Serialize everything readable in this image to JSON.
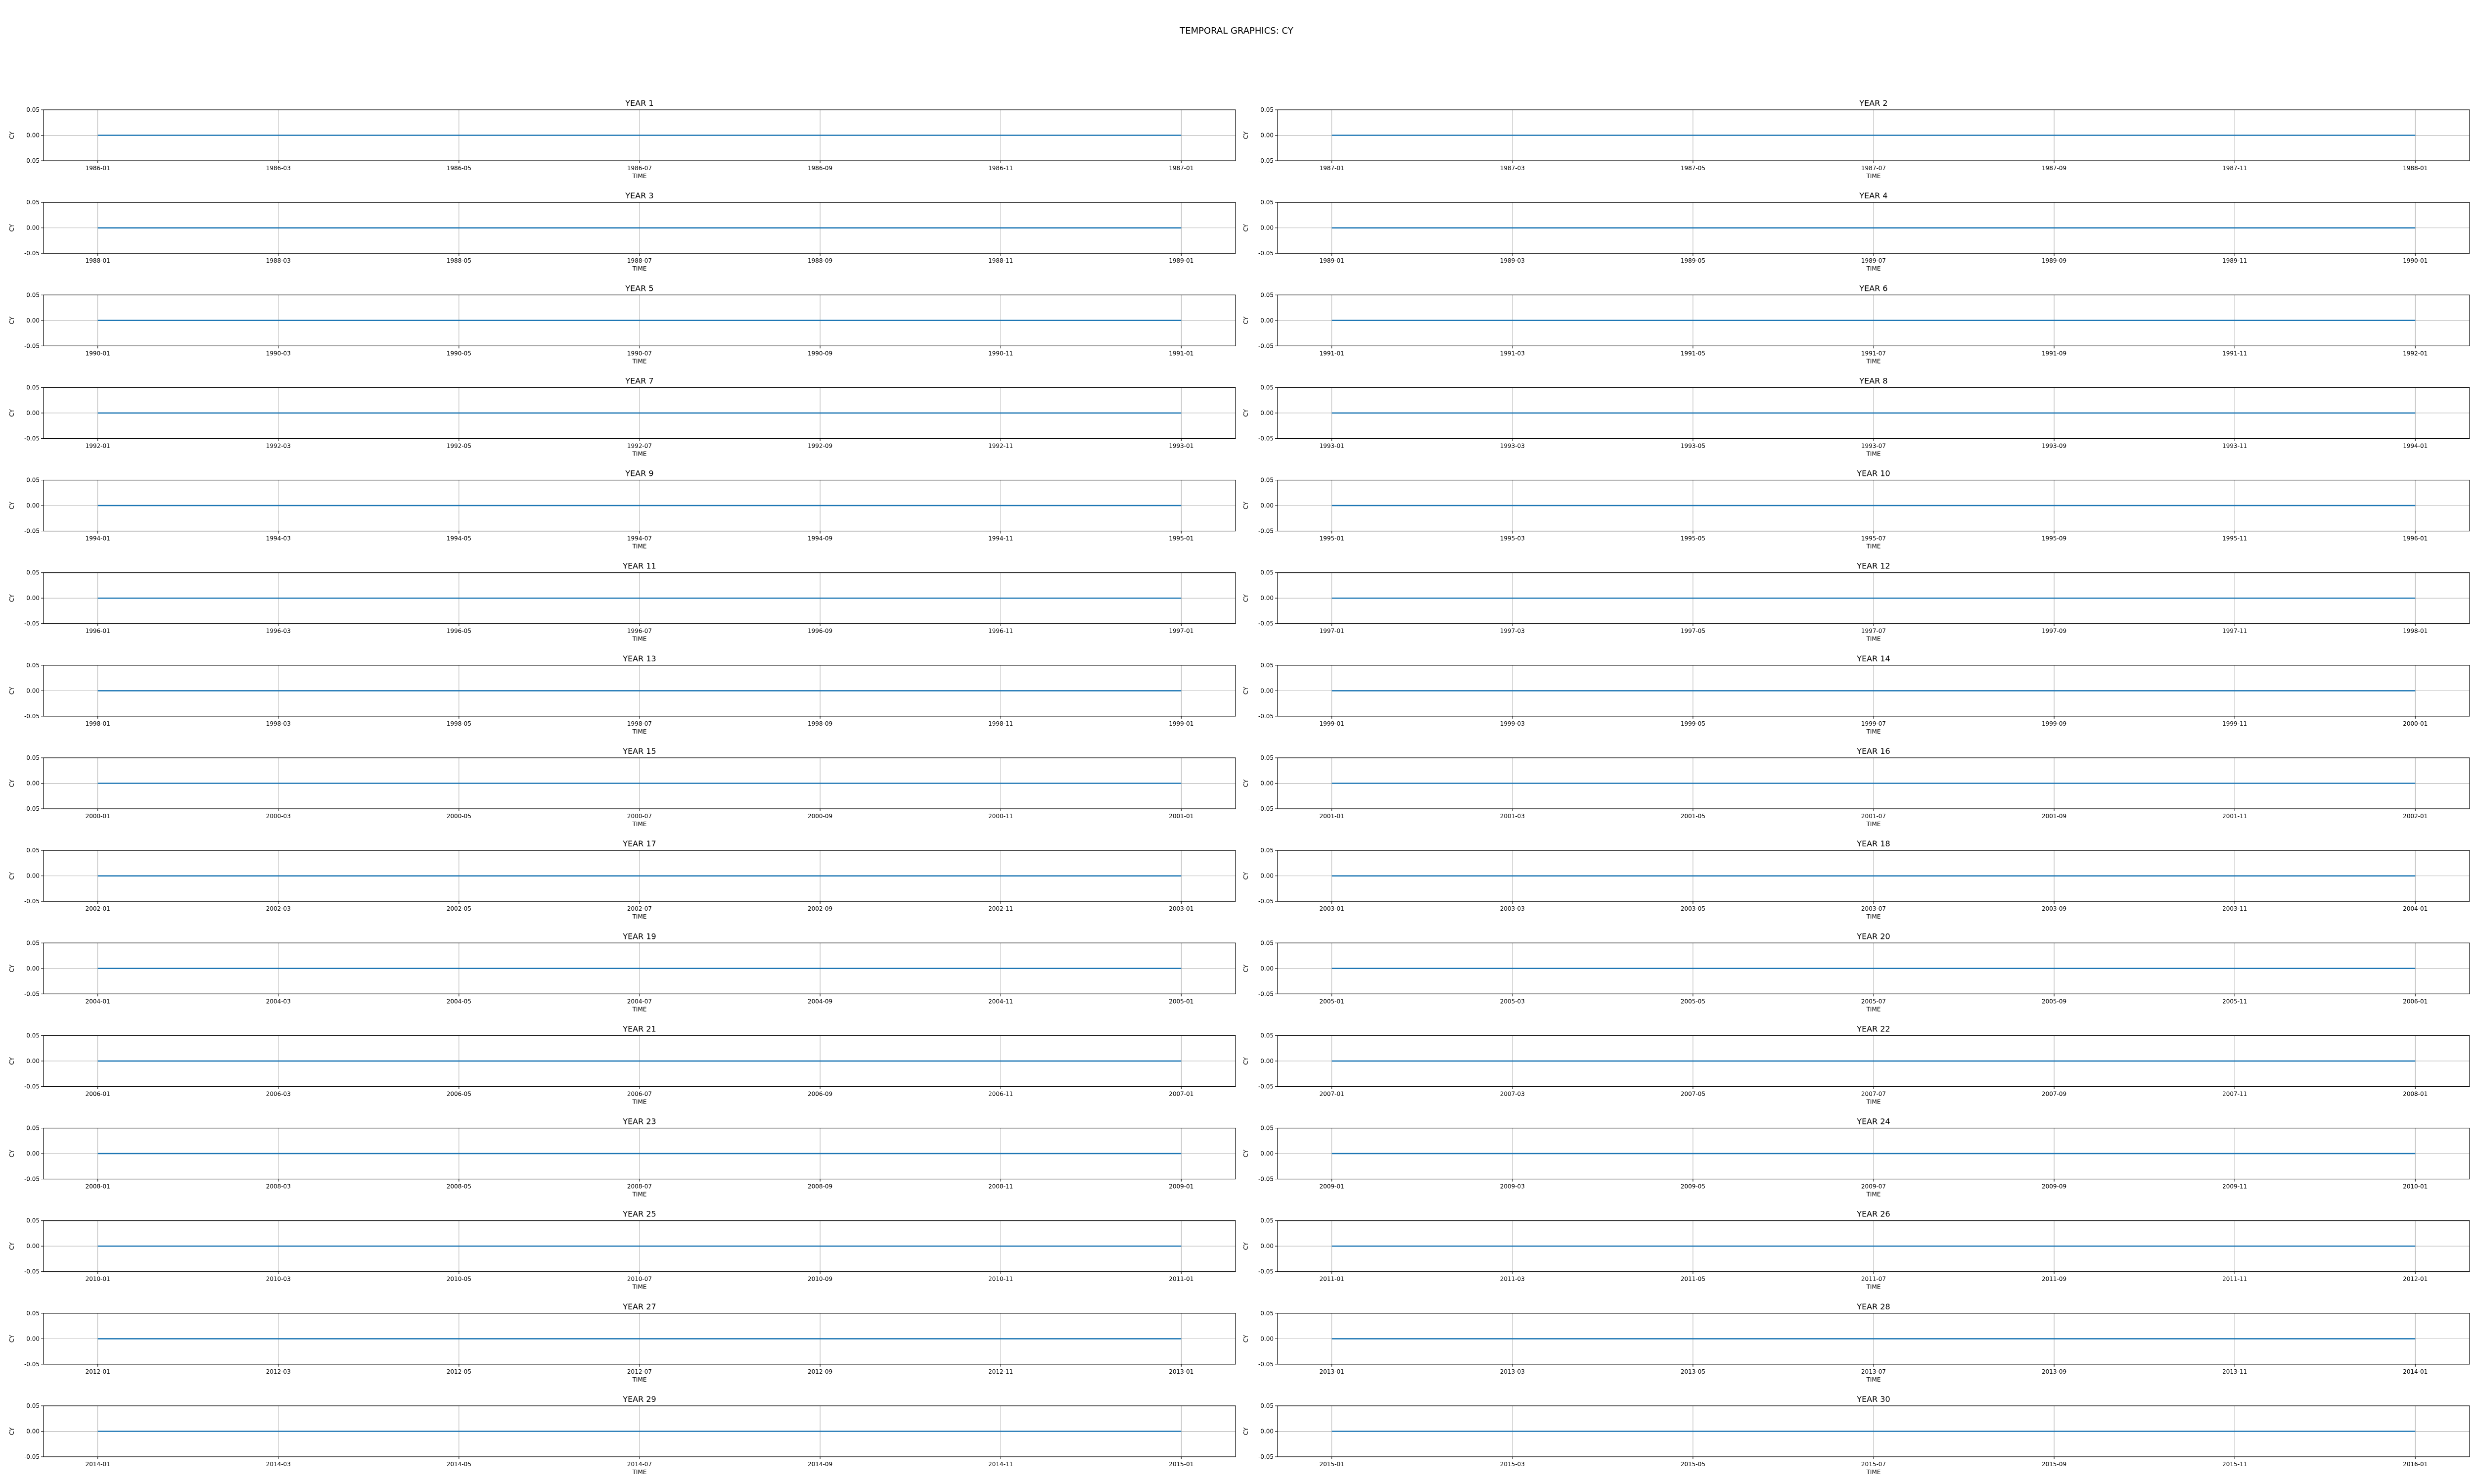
{
  "figure": {
    "title": "TEMPORAL GRAPHICS: CY"
  },
  "colors": {
    "line": "#1f77b4",
    "grid": "#b0b0b0",
    "axes": "#000000"
  },
  "chart_data": {
    "type": "line",
    "layout": "15x2 grid of subplots",
    "grid": true,
    "xlabel": "TIME",
    "ylabel": "CY",
    "ylim": [
      -0.05,
      0.05
    ],
    "yticks": [
      "0.05",
      "0.00",
      "-0.05"
    ],
    "series_rule": "constant value 0 from the first date of each panel to the first date of the following year",
    "value": 0,
    "panels": [
      {
        "title": "YEAR 1",
        "start": "1986-01",
        "end": "1987-01",
        "xticks": [
          "1986-01",
          "1986-03",
          "1986-05",
          "1986-07",
          "1986-09",
          "1986-11",
          "1987-01"
        ]
      },
      {
        "title": "YEAR 2",
        "start": "1987-01",
        "end": "1988-01",
        "xticks": [
          "1987-01",
          "1987-03",
          "1987-05",
          "1987-07",
          "1987-09",
          "1987-11",
          "1988-01"
        ]
      },
      {
        "title": "YEAR 3",
        "start": "1988-01",
        "end": "1989-01",
        "xticks": [
          "1988-01",
          "1988-03",
          "1988-05",
          "1988-07",
          "1988-09",
          "1988-11",
          "1989-01"
        ]
      },
      {
        "title": "YEAR 4",
        "start": "1989-01",
        "end": "1990-01",
        "xticks": [
          "1989-01",
          "1989-03",
          "1989-05",
          "1989-07",
          "1989-09",
          "1989-11",
          "1990-01"
        ]
      },
      {
        "title": "YEAR 5",
        "start": "1990-01",
        "end": "1991-01",
        "xticks": [
          "1990-01",
          "1990-03",
          "1990-05",
          "1990-07",
          "1990-09",
          "1990-11",
          "1991-01"
        ]
      },
      {
        "title": "YEAR 6",
        "start": "1991-01",
        "end": "1992-01",
        "xticks": [
          "1991-01",
          "1991-03",
          "1991-05",
          "1991-07",
          "1991-09",
          "1991-11",
          "1992-01"
        ]
      },
      {
        "title": "YEAR 7",
        "start": "1992-01",
        "end": "1993-01",
        "xticks": [
          "1992-01",
          "1992-03",
          "1992-05",
          "1992-07",
          "1992-09",
          "1992-11",
          "1993-01"
        ]
      },
      {
        "title": "YEAR 8",
        "start": "1993-01",
        "end": "1994-01",
        "xticks": [
          "1993-01",
          "1993-03",
          "1993-05",
          "1993-07",
          "1993-09",
          "1993-11",
          "1994-01"
        ]
      },
      {
        "title": "YEAR 9",
        "start": "1994-01",
        "end": "1995-01",
        "xticks": [
          "1994-01",
          "1994-03",
          "1994-05",
          "1994-07",
          "1994-09",
          "1994-11",
          "1995-01"
        ]
      },
      {
        "title": "YEAR 10",
        "start": "1995-01",
        "end": "1996-01",
        "xticks": [
          "1995-01",
          "1995-03",
          "1995-05",
          "1995-07",
          "1995-09",
          "1995-11",
          "1996-01"
        ]
      },
      {
        "title": "YEAR 11",
        "start": "1996-01",
        "end": "1997-01",
        "xticks": [
          "1996-01",
          "1996-03",
          "1996-05",
          "1996-07",
          "1996-09",
          "1996-11",
          "1997-01"
        ]
      },
      {
        "title": "YEAR 12",
        "start": "1997-01",
        "end": "1998-01",
        "xticks": [
          "1997-01",
          "1997-03",
          "1997-05",
          "1997-07",
          "1997-09",
          "1997-11",
          "1998-01"
        ]
      },
      {
        "title": "YEAR 13",
        "start": "1998-01",
        "end": "1999-01",
        "xticks": [
          "1998-01",
          "1998-03",
          "1998-05",
          "1998-07",
          "1998-09",
          "1998-11",
          "1999-01"
        ]
      },
      {
        "title": "YEAR 14",
        "start": "1999-01",
        "end": "2000-01",
        "xticks": [
          "1999-01",
          "1999-03",
          "1999-05",
          "1999-07",
          "1999-09",
          "1999-11",
          "2000-01"
        ]
      },
      {
        "title": "YEAR 15",
        "start": "2000-01",
        "end": "2001-01",
        "xticks": [
          "2000-01",
          "2000-03",
          "2000-05",
          "2000-07",
          "2000-09",
          "2000-11",
          "2001-01"
        ]
      },
      {
        "title": "YEAR 16",
        "start": "2001-01",
        "end": "2002-01",
        "xticks": [
          "2001-01",
          "2001-03",
          "2001-05",
          "2001-07",
          "2001-09",
          "2001-11",
          "2002-01"
        ]
      },
      {
        "title": "YEAR 17",
        "start": "2002-01",
        "end": "2003-01",
        "xticks": [
          "2002-01",
          "2002-03",
          "2002-05",
          "2002-07",
          "2002-09",
          "2002-11",
          "2003-01"
        ]
      },
      {
        "title": "YEAR 18",
        "start": "2003-01",
        "end": "2004-01",
        "xticks": [
          "2003-01",
          "2003-03",
          "2003-05",
          "2003-07",
          "2003-09",
          "2003-11",
          "2004-01"
        ]
      },
      {
        "title": "YEAR 19",
        "start": "2004-01",
        "end": "2005-01",
        "xticks": [
          "2004-01",
          "2004-03",
          "2004-05",
          "2004-07",
          "2004-09",
          "2004-11",
          "2005-01"
        ]
      },
      {
        "title": "YEAR 20",
        "start": "2005-01",
        "end": "2006-01",
        "xticks": [
          "2005-01",
          "2005-03",
          "2005-05",
          "2005-07",
          "2005-09",
          "2005-11",
          "2006-01"
        ]
      },
      {
        "title": "YEAR 21",
        "start": "2006-01",
        "end": "2007-01",
        "xticks": [
          "2006-01",
          "2006-03",
          "2006-05",
          "2006-07",
          "2006-09",
          "2006-11",
          "2007-01"
        ]
      },
      {
        "title": "YEAR 22",
        "start": "2007-01",
        "end": "2008-01",
        "xticks": [
          "2007-01",
          "2007-03",
          "2007-05",
          "2007-07",
          "2007-09",
          "2007-11",
          "2008-01"
        ]
      },
      {
        "title": "YEAR 23",
        "start": "2008-01",
        "end": "2009-01",
        "xticks": [
          "2008-01",
          "2008-03",
          "2008-05",
          "2008-07",
          "2008-09",
          "2008-11",
          "2009-01"
        ]
      },
      {
        "title": "YEAR 24",
        "start": "2009-01",
        "end": "2010-01",
        "xticks": [
          "2009-01",
          "2009-03",
          "2009-05",
          "2009-07",
          "2009-09",
          "2009-11",
          "2010-01"
        ]
      },
      {
        "title": "YEAR 25",
        "start": "2010-01",
        "end": "2011-01",
        "xticks": [
          "2010-01",
          "2010-03",
          "2010-05",
          "2010-07",
          "2010-09",
          "2010-11",
          "2011-01"
        ]
      },
      {
        "title": "YEAR 26",
        "start": "2011-01",
        "end": "2012-01",
        "xticks": [
          "2011-01",
          "2011-03",
          "2011-05",
          "2011-07",
          "2011-09",
          "2011-11",
          "2012-01"
        ]
      },
      {
        "title": "YEAR 27",
        "start": "2012-01",
        "end": "2013-01",
        "xticks": [
          "2012-01",
          "2012-03",
          "2012-05",
          "2012-07",
          "2012-09",
          "2012-11",
          "2013-01"
        ]
      },
      {
        "title": "YEAR 28",
        "start": "2013-01",
        "end": "2014-01",
        "xticks": [
          "2013-01",
          "2013-03",
          "2013-05",
          "2013-07",
          "2013-09",
          "2013-11",
          "2014-01"
        ]
      },
      {
        "title": "YEAR 29",
        "start": "2014-01",
        "end": "2015-01",
        "xticks": [
          "2014-01",
          "2014-03",
          "2014-05",
          "2014-07",
          "2014-09",
          "2014-11",
          "2015-01"
        ]
      },
      {
        "title": "YEAR 30",
        "start": "2015-01",
        "end": "2016-01",
        "xticks": [
          "2015-01",
          "2015-03",
          "2015-05",
          "2015-07",
          "2015-09",
          "2015-11",
          "2016-01"
        ]
      }
    ]
  }
}
